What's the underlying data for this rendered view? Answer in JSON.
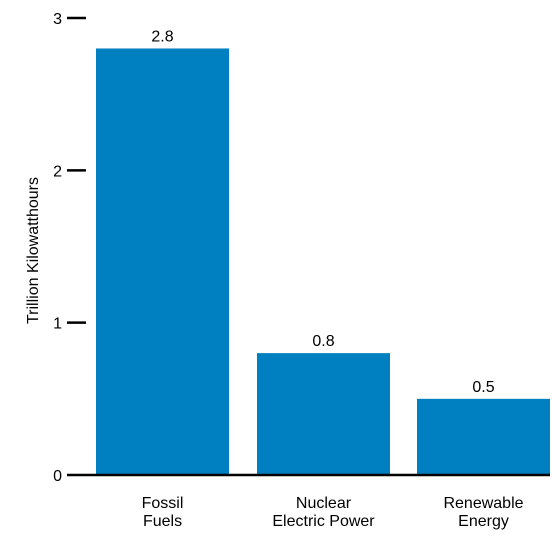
{
  "chart_data": {
    "type": "bar",
    "categories": [
      [
        "Fossil",
        "Fuels"
      ],
      [
        "Nuclear",
        "Electric Power"
      ],
      [
        "Renewable",
        "Energy"
      ]
    ],
    "values": [
      2.8,
      0.8,
      0.5
    ],
    "value_labels": [
      "2.8",
      "0.8",
      "0.5"
    ],
    "title": "",
    "xlabel": "",
    "ylabel": "Trillion Kilowatthours",
    "ylim": [
      0,
      3
    ],
    "yticks": [
      0,
      1,
      2,
      3
    ],
    "ytick_labels": [
      "0",
      "1",
      "2",
      "3"
    ],
    "grid": false,
    "bar_color": "#0080c0",
    "axis_color": "#000000"
  }
}
